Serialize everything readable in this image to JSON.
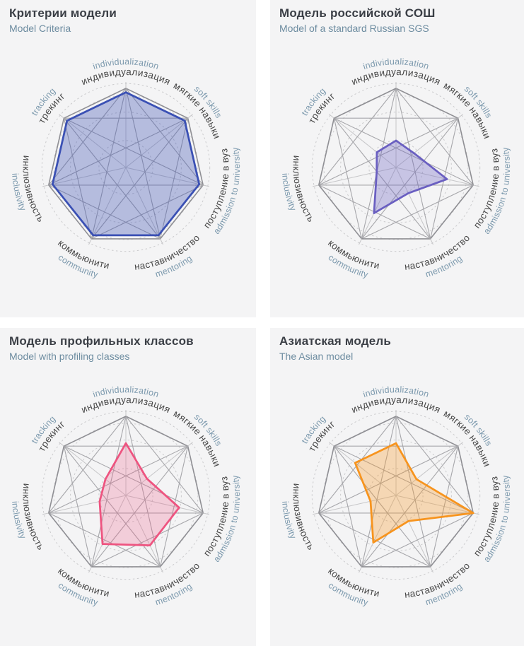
{
  "axes": [
    {
      "ru": "индивидуализация",
      "en": "individualization",
      "angle": -90,
      "flipped": false
    },
    {
      "ru": "мягкие навыки",
      "en": "soft skills",
      "angle": -38.571,
      "flipped": false
    },
    {
      "ru": "поступление в вуз",
      "en": "admission to university",
      "angle": 12.857,
      "flipped": true
    },
    {
      "ru": "наставничество",
      "en": "mentoring",
      "angle": 64.286,
      "flipped": true
    },
    {
      "ru": "коммьюнити",
      "en": "community",
      "angle": 115.714,
      "flipped": true
    },
    {
      "ru": "инклюзивность",
      "en": "inclusivity",
      "angle": 167.143,
      "flipped": true
    },
    {
      "ru": "трекинг",
      "en": "tracking",
      "angle": -141.429,
      "flipped": false
    }
  ],
  "charts": [
    {
      "id": "criteria",
      "title": "Критерии модели",
      "subtitle": "Model Criteria",
      "color": "#3a50b4",
      "fill_opacity": 0.34,
      "values": [
        0.95,
        0.95,
        0.95,
        0.95,
        0.95,
        0.95,
        0.95
      ]
    },
    {
      "id": "russian-sgs",
      "title": "Модель российской СОШ",
      "subtitle": "Model of a standard Russian SGS",
      "color": "#6a5fc1",
      "fill_opacity": 0.32,
      "values": [
        0.34,
        0.29,
        0.66,
        0.36,
        0.64,
        0.25,
        0.31
      ]
    },
    {
      "id": "profiling",
      "title": "Модель профильных классов",
      "subtitle": "Model with profiling classes",
      "color": "#ee5480",
      "fill_opacity": 0.24,
      "values": [
        0.66,
        0.34,
        0.69,
        0.7,
        0.68,
        0.34,
        0.33
      ]
    },
    {
      "id": "asian",
      "title": "Азиатская модель",
      "subtitle": "The Asian model",
      "color": "#f7941e",
      "fill_opacity": 0.3,
      "values": [
        0.66,
        0.33,
        1.0,
        0.36,
        0.66,
        0.33,
        0.66
      ]
    }
  ],
  "grid": {
    "circle_radii": [
      0.34,
      0.7,
      0.91,
      1.06
    ],
    "circle_color": "#cbcbcd",
    "spoke_color": "#c6c6c8",
    "web_edge_color": "#8f8f94",
    "web_diag_color": "#a7a7ab",
    "label_ru_color": "#474747",
    "label_en_color": "#7d9aae"
  },
  "chart_data": [
    {
      "type": "radar",
      "title": "Критерии модели / Model Criteria",
      "categories_ru": [
        "индивидуализация",
        "мягкие навыки",
        "поступление в вуз",
        "наставничество",
        "коммьюнити",
        "инклюзивность",
        "трекинг"
      ],
      "categories_en": [
        "individualization",
        "soft skills",
        "admission to university",
        "mentoring",
        "community",
        "inclusivity",
        "tracking"
      ],
      "scale": [
        0,
        1
      ],
      "values": [
        0.95,
        0.95,
        0.95,
        0.95,
        0.95,
        0.95,
        0.95
      ],
      "grid": "dashed concentric circles + full K7 web between axis endpoints",
      "legend_position": "none"
    },
    {
      "type": "radar",
      "title": "Модель российской СОШ / Model of a standard Russian SGS",
      "categories_ru": [
        "индивидуализация",
        "мягкие навыки",
        "поступление в вуз",
        "наставничество",
        "коммьюнити",
        "инклюзивность",
        "трекинг"
      ],
      "categories_en": [
        "individualization",
        "soft skills",
        "admission to university",
        "mentoring",
        "community",
        "inclusivity",
        "tracking"
      ],
      "scale": [
        0,
        1
      ],
      "values": [
        0.34,
        0.29,
        0.66,
        0.36,
        0.64,
        0.25,
        0.31
      ],
      "grid": "dashed concentric circles + full K7 web between axis endpoints",
      "legend_position": "none"
    },
    {
      "type": "radar",
      "title": "Модель профильных классов / Model with profiling classes",
      "categories_ru": [
        "индивидуализация",
        "мягкие навыки",
        "поступление в вуз",
        "наставничество",
        "коммьюнити",
        "инклюзивность",
        "трекинг"
      ],
      "categories_en": [
        "individualization",
        "soft skills",
        "admission to university",
        "mentoring",
        "community",
        "inclusivity",
        "tracking"
      ],
      "scale": [
        0,
        1
      ],
      "values": [
        0.66,
        0.34,
        0.69,
        0.7,
        0.68,
        0.34,
        0.33
      ],
      "grid": "dashed concentric circles + full K7 web between axis endpoints",
      "legend_position": "none"
    },
    {
      "type": "radar",
      "title": "Азиатская модель / The Asian model",
      "categories_ru": [
        "индивидуализация",
        "мягкие навыки",
        "поступление в вуз",
        "наставничество",
        "коммьюнити",
        "инклюзивность",
        "трекинг"
      ],
      "categories_en": [
        "individualization",
        "soft skills",
        "admission to university",
        "mentoring",
        "community",
        "inclusivity",
        "tracking"
      ],
      "scale": [
        0,
        1
      ],
      "values": [
        0.66,
        0.33,
        1.0,
        0.36,
        0.66,
        0.33,
        0.66
      ],
      "grid": "dashed concentric circles + full K7 web between axis endpoints",
      "legend_position": "none"
    }
  ]
}
